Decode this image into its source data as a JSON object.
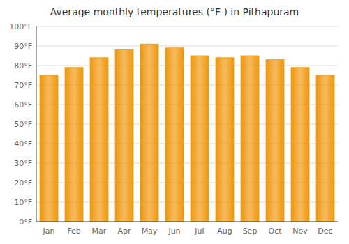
{
  "chart_data": {
    "type": "bar",
    "title": "Average monthly temperatures (°F ) in Pithāpuram",
    "categories": [
      "Jan",
      "Feb",
      "Mar",
      "Apr",
      "May",
      "Jun",
      "Jul",
      "Aug",
      "Sep",
      "Oct",
      "Nov",
      "Dec"
    ],
    "values": [
      75,
      79,
      84,
      88,
      91,
      89,
      85,
      84,
      85,
      83,
      79,
      75
    ],
    "color": "#F0960A",
    "ylim": [
      0,
      100
    ],
    "yticks": [
      {
        "value": 0,
        "label": "0°F"
      },
      {
        "value": 10,
        "label": "10°F"
      },
      {
        "value": 20,
        "label": "20°F"
      },
      {
        "value": 30,
        "label": "30°F"
      },
      {
        "value": 40,
        "label": "40°F"
      },
      {
        "value": 50,
        "label": "50°F"
      },
      {
        "value": 60,
        "label": "60°F"
      },
      {
        "value": 70,
        "label": "70°F"
      },
      {
        "value": 80,
        "label": "80°F"
      },
      {
        "value": 90,
        "label": "90°F"
      },
      {
        "value": 100,
        "label": "100°F"
      }
    ],
    "grid": true
  }
}
